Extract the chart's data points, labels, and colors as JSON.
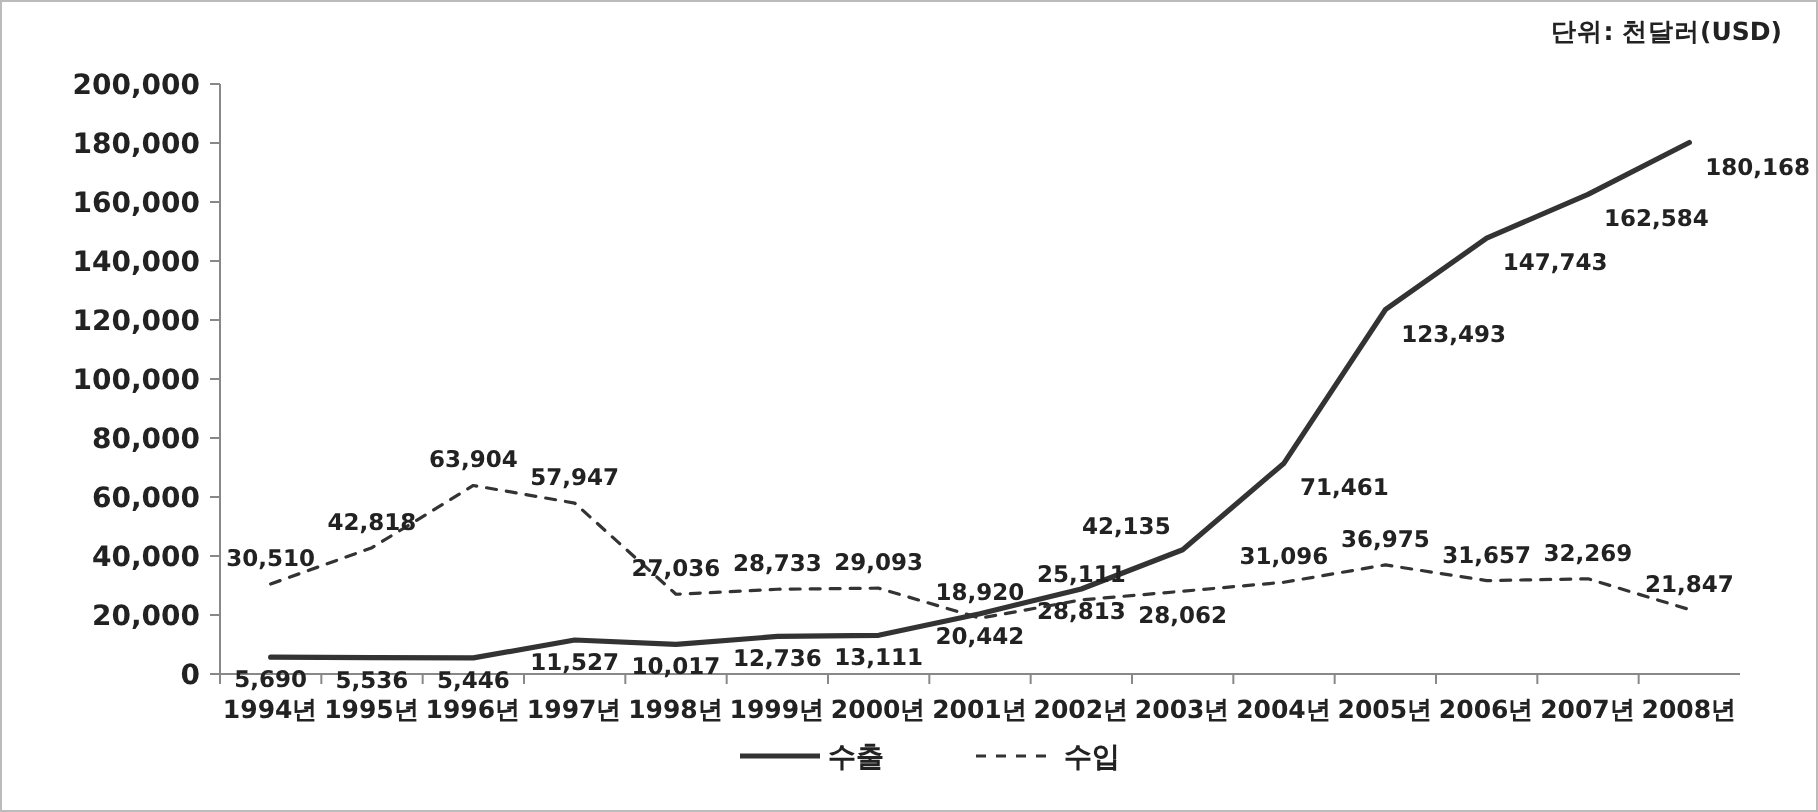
{
  "chart_data": {
    "type": "line",
    "annotations": [
      "단위: 천달러(USD)"
    ],
    "categories": [
      "1994년",
      "1995년",
      "1996년",
      "1997년",
      "1998년",
      "1999년",
      "2000년",
      "2001년",
      "2002년",
      "2003년",
      "2004년",
      "2005년",
      "2006년",
      "2007년",
      "2008년"
    ],
    "series": [
      {
        "name": "수출",
        "color": "#333333",
        "line_style": "solid",
        "values": [
          5690,
          5536,
          5446,
          11527,
          10017,
          12736,
          13111,
          20442,
          28813,
          42135,
          71461,
          123493,
          147743,
          162584,
          180168
        ],
        "value_labels": [
          "5,690",
          "5,536",
          "5,446",
          "11,527",
          "10,017",
          "12,736",
          "13,111",
          "20,442",
          "28,813",
          "42,135",
          "71,461",
          "123,493",
          "147,743",
          "162,584",
          "180,168"
        ]
      },
      {
        "name": "수입",
        "color": "#333333",
        "line_style": "dashed",
        "values": [
          30510,
          42818,
          63904,
          57947,
          27036,
          28733,
          29093,
          18920,
          25111,
          28062,
          31096,
          36975,
          31657,
          32269,
          21847
        ],
        "value_labels": [
          "30,510",
          "42,818",
          "63,904",
          "57,947",
          "27,036",
          "28,733",
          "29,093",
          "18,920",
          "25,111",
          "28,062",
          "31,096",
          "36,975",
          "31,657",
          "32,269",
          "21,847"
        ]
      }
    ],
    "ylim": [
      0,
      200000
    ],
    "yticks": [
      {
        "value": 0,
        "label": "0"
      },
      {
        "value": 20000,
        "label": "20,000"
      },
      {
        "value": 40000,
        "label": "40,000"
      },
      {
        "value": 60000,
        "label": "60,000"
      },
      {
        "value": 80000,
        "label": "80,000"
      },
      {
        "value": 100000,
        "label": "100,000"
      },
      {
        "value": 120000,
        "label": "120,000"
      },
      {
        "value": 140000,
        "label": "140,000"
      },
      {
        "value": 160000,
        "label": "160,000"
      },
      {
        "value": 180000,
        "label": "180,000"
      },
      {
        "value": 200000,
        "label": "200,000"
      }
    ],
    "legend": "bottom",
    "marker": "none",
    "grid": false
  }
}
